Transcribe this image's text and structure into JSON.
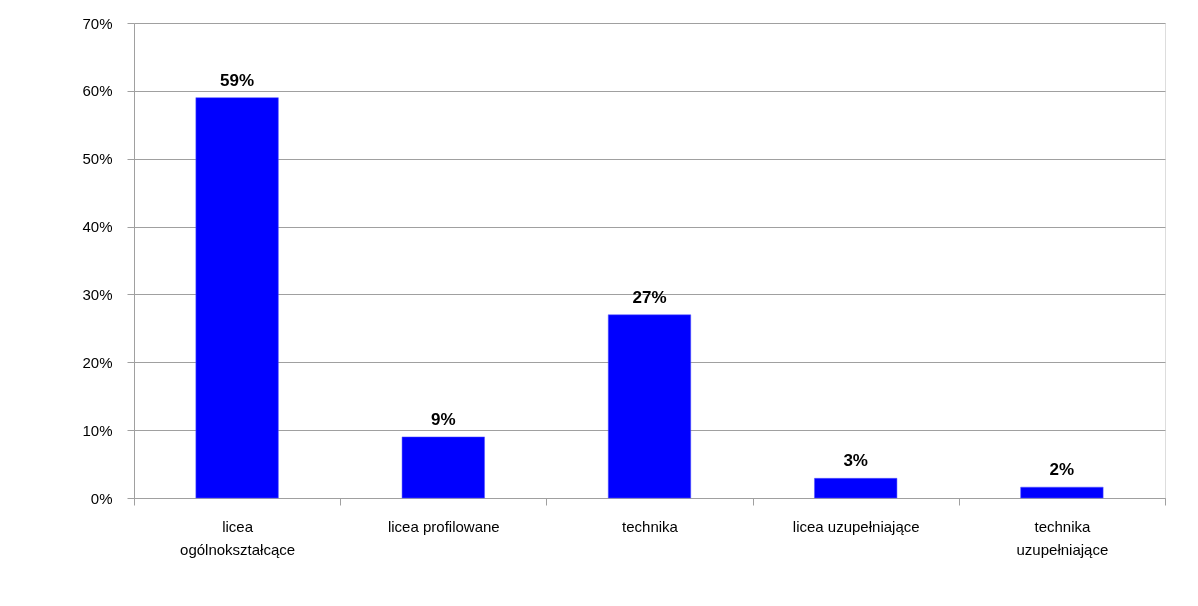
{
  "chart_data": {
    "type": "bar",
    "categories": [
      "licea ogólnokształcące",
      "licea profilowane",
      "technika",
      "licea uzupełniające",
      "technika uzupełniające"
    ],
    "values": [
      59,
      9,
      27,
      2.9,
      1.6
    ],
    "value_labels": [
      "59%",
      "9%",
      "27%",
      "3%",
      "2%"
    ],
    "color": "#0000ff",
    "ylim": [
      0,
      70
    ],
    "yticks": [
      {
        "value": 0,
        "label": "0%"
      },
      {
        "value": 10,
        "label": "10%"
      },
      {
        "value": 20,
        "label": "20%"
      },
      {
        "value": 30,
        "label": "30%"
      },
      {
        "value": 40,
        "label": "40%"
      },
      {
        "value": 50,
        "label": "50%"
      },
      {
        "value": 60,
        "label": "60%"
      },
      {
        "value": 70,
        "label": "70%"
      }
    ],
    "grid": "y"
  }
}
